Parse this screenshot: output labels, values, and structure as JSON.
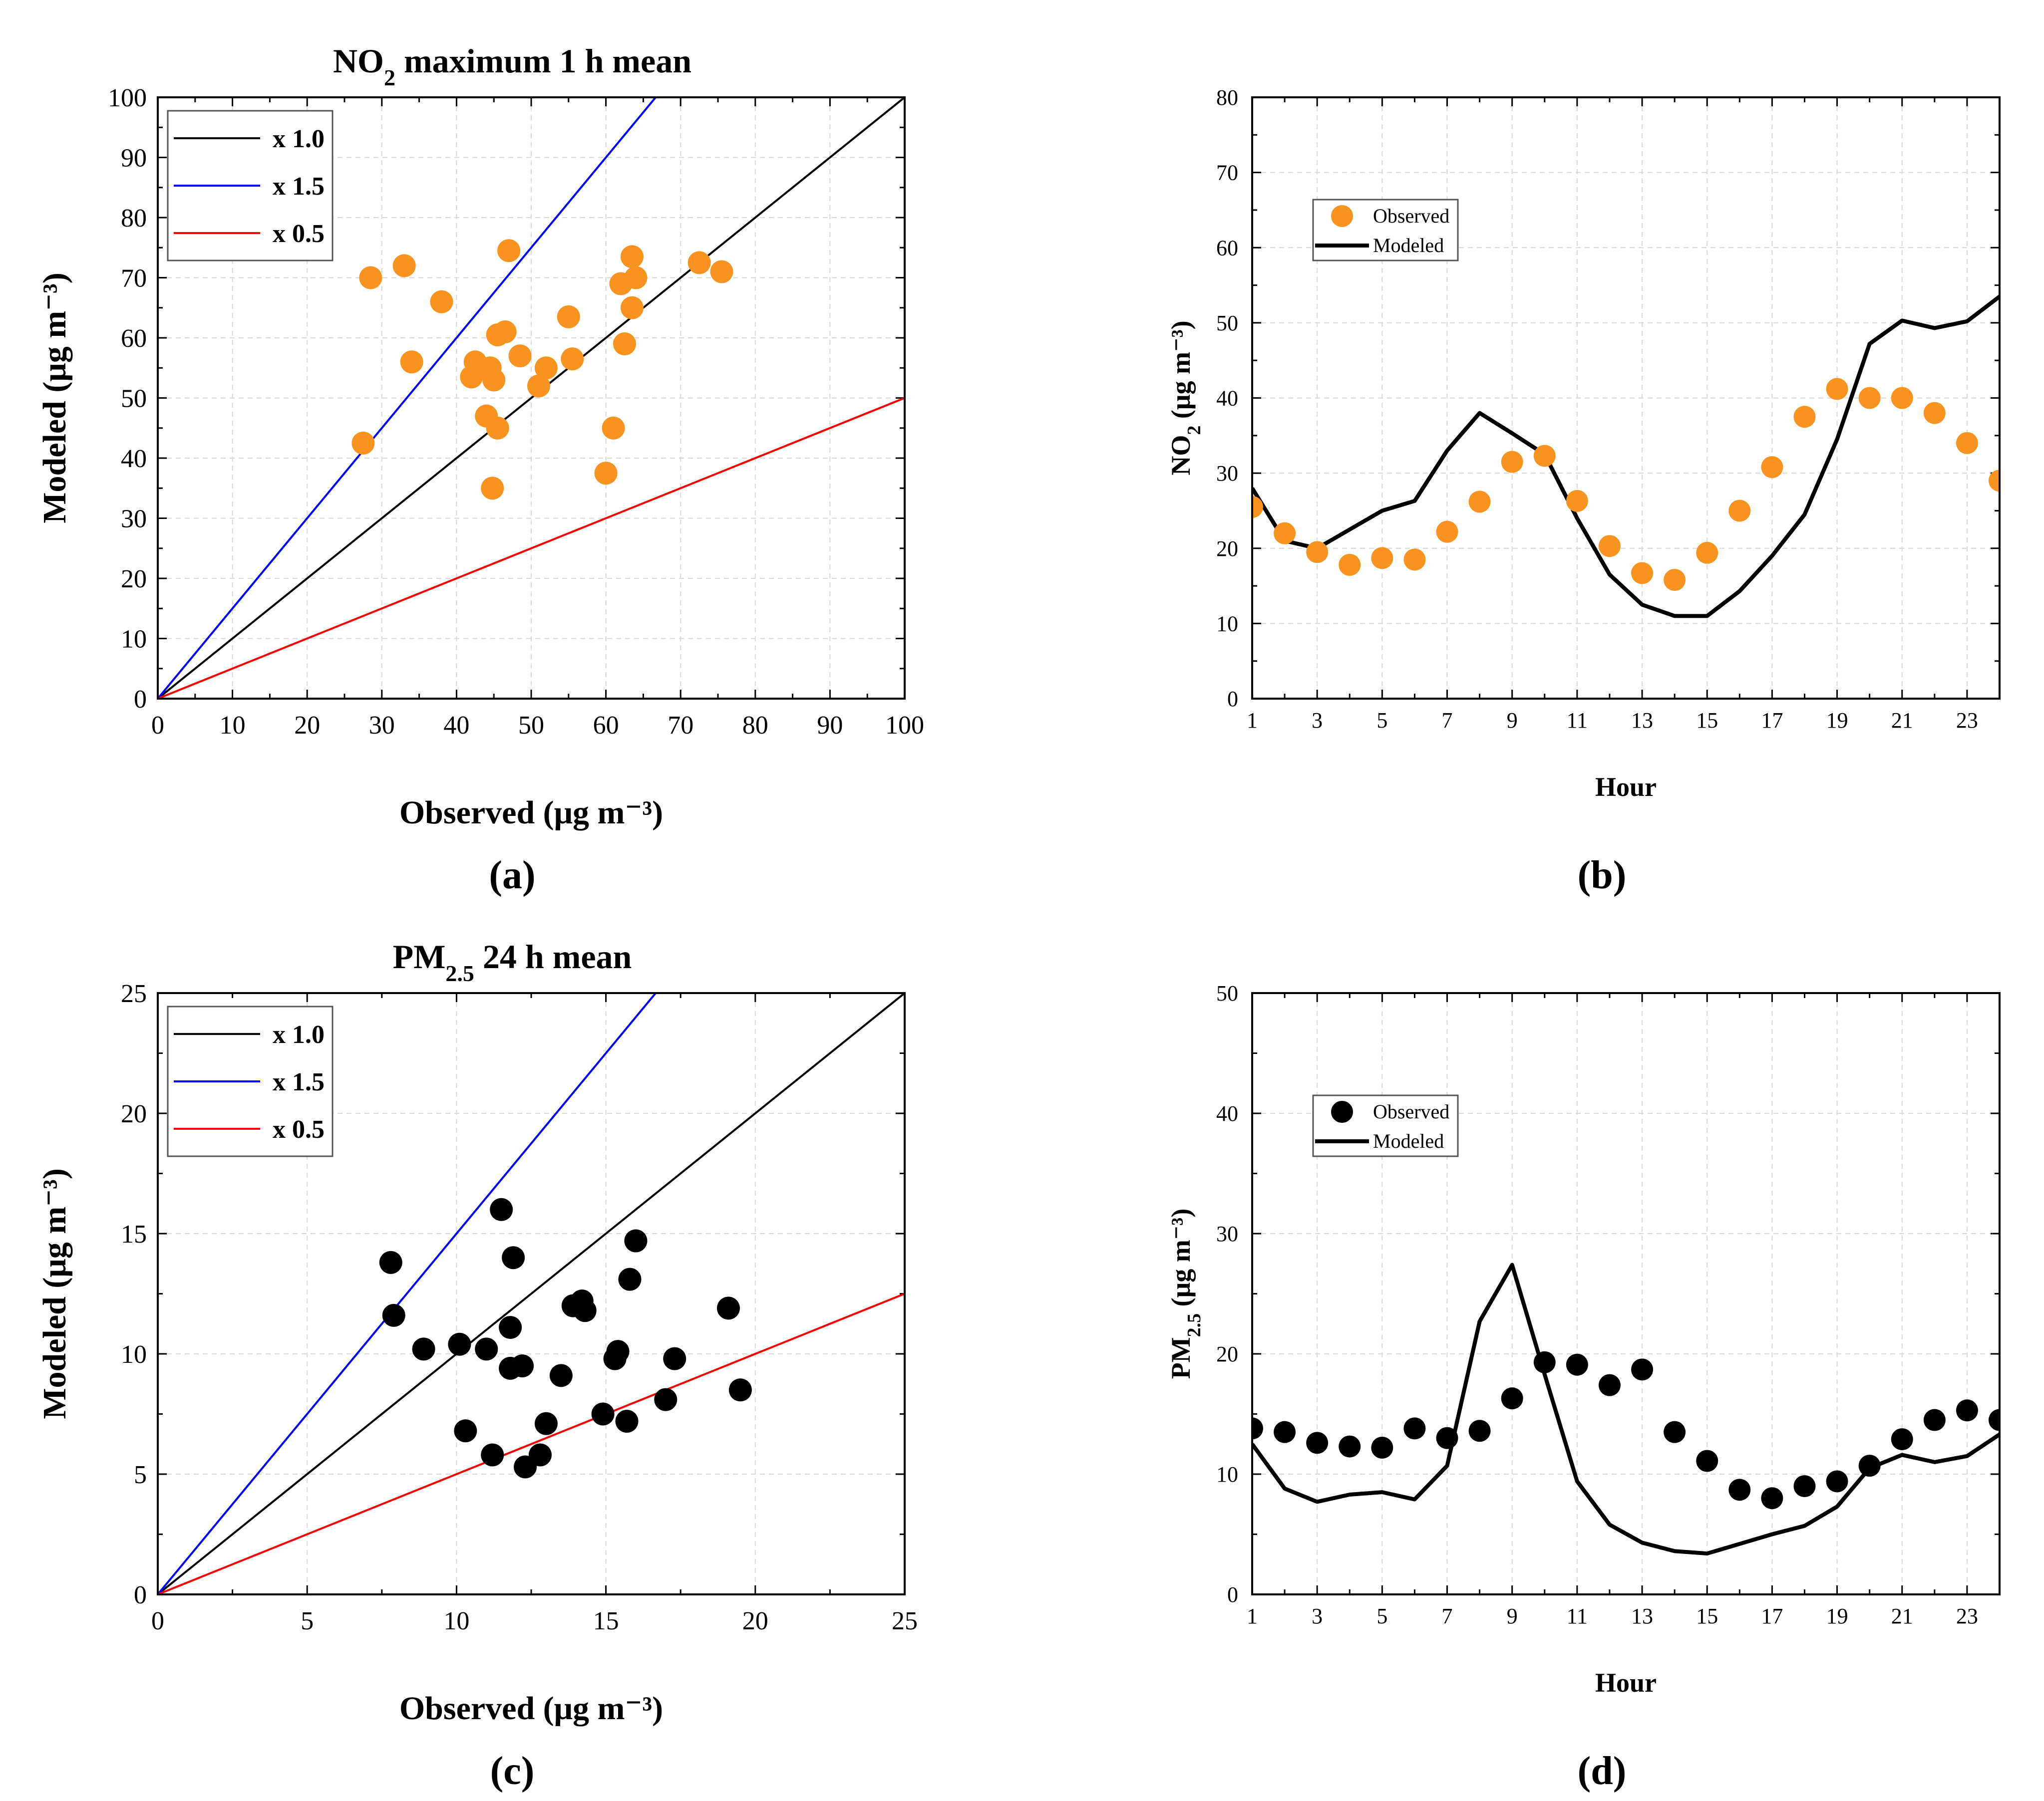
{
  "chart_data": [
    {
      "id": "a",
      "type": "scatter",
      "title": "NO2 maximum 1 h mean",
      "title_main": "NO",
      "title_sub": "2",
      "title_rest": " maximum 1 h mean",
      "panel_label": "(a)",
      "xlabel": "Observed (μg m⁻³)",
      "ylabel": "Modeled (μg m⁻³)",
      "xlim": [
        0,
        100
      ],
      "ylim": [
        0,
        100
      ],
      "xticks": [
        0,
        10,
        20,
        30,
        40,
        50,
        60,
        70,
        80,
        90,
        100
      ],
      "yticks": [
        0,
        10,
        20,
        30,
        40,
        50,
        60,
        70,
        80,
        90,
        100
      ],
      "marker_color": "#f7931e",
      "points": [
        [
          27.5,
          42.5
        ],
        [
          28.5,
          70
        ],
        [
          33,
          72
        ],
        [
          34,
          56
        ],
        [
          38,
          66
        ],
        [
          42,
          53.5
        ],
        [
          42.5,
          56
        ],
        [
          44,
          47
        ],
        [
          44.5,
          55
        ],
        [
          44.8,
          35
        ],
        [
          45,
          53
        ],
        [
          45.5,
          60.5
        ],
        [
          45.5,
          45
        ],
        [
          46.5,
          61
        ],
        [
          47,
          74.5
        ],
        [
          48.5,
          57
        ],
        [
          51,
          52
        ],
        [
          52,
          55
        ],
        [
          55,
          63.5
        ],
        [
          55.5,
          56.5
        ],
        [
          60,
          37.5
        ],
        [
          61,
          45
        ],
        [
          62,
          69
        ],
        [
          62.5,
          59
        ],
        [
          63.5,
          65
        ],
        [
          63.5,
          73.5
        ],
        [
          64,
          70
        ],
        [
          72.5,
          72.5
        ],
        [
          75.5,
          71
        ]
      ],
      "ref_lines": [
        {
          "name": "x 1.0",
          "slope": 1.0,
          "color": "#000000"
        },
        {
          "name": "x 1.5",
          "slope": 1.5,
          "color": "#0000ff"
        },
        {
          "name": "x 0.5",
          "slope": 0.5,
          "color": "#ff0000"
        }
      ],
      "legend": [
        "x 1.0",
        "x 1.5",
        "x 0.5"
      ],
      "legend_position": "top-left"
    },
    {
      "id": "b",
      "type": "line",
      "panel_label": "(b)",
      "xlabel": "Hour",
      "ylabel": "NO2 (μg m⁻³)",
      "ylabel_main": "NO",
      "ylabel_sub": "2",
      "ylabel_rest": " (μg m⁻³)",
      "xlim": [
        1,
        24
      ],
      "ylim": [
        0,
        80
      ],
      "xticks": [
        1,
        3,
        5,
        7,
        9,
        11,
        13,
        15,
        17,
        19,
        21,
        23
      ],
      "yticks": [
        0,
        10,
        20,
        30,
        40,
        50,
        60,
        70,
        80
      ],
      "x": [
        1,
        2,
        3,
        4,
        5,
        6,
        7,
        8,
        9,
        10,
        11,
        12,
        13,
        14,
        15,
        16,
        17,
        18,
        19,
        20,
        21,
        22,
        23,
        24
      ],
      "series": [
        {
          "name": "Observed",
          "style": "markers",
          "color": "#f7931e",
          "values": [
            25.5,
            22,
            19.5,
            17.8,
            18.7,
            18.5,
            22.2,
            26.2,
            31.5,
            32.3,
            26.3,
            20.3,
            16.7,
            15.8,
            19.4,
            25,
            30.8,
            37.5,
            41.2,
            40,
            40,
            38,
            34,
            29
          ]
        },
        {
          "name": "Modeled",
          "style": "line",
          "color": "#000000",
          "values": [
            28,
            21,
            20,
            22.5,
            25,
            26.3,
            33,
            38,
            35.3,
            32.5,
            24,
            16.5,
            12.5,
            11,
            11,
            14.3,
            19,
            24.5,
            34.5,
            47.2,
            50.3,
            49.3,
            50.2,
            53.5
          ]
        }
      ],
      "legend": [
        "Observed",
        "Modeled"
      ],
      "legend_position": "upper-left"
    },
    {
      "id": "c",
      "type": "scatter",
      "title": "PM2.5 24 h mean",
      "title_main": "PM",
      "title_sub": "2.5",
      "title_rest": " 24 h mean",
      "panel_label": "(c)",
      "xlabel": "Observed (μg m⁻³)",
      "ylabel": "Modeled (μg m⁻³)",
      "xlim": [
        0,
        25
      ],
      "ylim": [
        0,
        25
      ],
      "xticks": [
        0,
        5,
        10,
        15,
        20,
        25
      ],
      "yticks": [
        0,
        5,
        10,
        15,
        20,
        25
      ],
      "marker_color": "#000000",
      "points": [
        [
          7.8,
          13.8
        ],
        [
          7.9,
          11.6
        ],
        [
          8.9,
          10.2
        ],
        [
          10.1,
          10.4
        ],
        [
          10.3,
          6.8
        ],
        [
          11,
          10.2
        ],
        [
          11.2,
          5.8
        ],
        [
          11.5,
          16
        ],
        [
          11.8,
          11.1
        ],
        [
          11.9,
          14
        ],
        [
          11.8,
          9.4
        ],
        [
          12.2,
          9.5
        ],
        [
          12.3,
          5.3
        ],
        [
          12.8,
          5.8
        ],
        [
          13,
          7.1
        ],
        [
          13.5,
          9.1
        ],
        [
          13.9,
          12
        ],
        [
          14.2,
          12.2
        ],
        [
          14.3,
          11.8
        ],
        [
          14.9,
          7.5
        ],
        [
          15.3,
          9.8
        ],
        [
          15.4,
          10.1
        ],
        [
          15.7,
          7.2
        ],
        [
          15.8,
          13.1
        ],
        [
          16,
          14.7
        ],
        [
          17,
          8.1
        ],
        [
          17.3,
          9.8
        ],
        [
          19.1,
          11.9
        ],
        [
          19.5,
          8.5
        ]
      ],
      "ref_lines": [
        {
          "name": "x 1.0",
          "slope": 1.0,
          "color": "#000000"
        },
        {
          "name": "x 1.5",
          "slope": 1.5,
          "color": "#0000ff"
        },
        {
          "name": "x 0.5",
          "slope": 0.5,
          "color": "#ff0000"
        }
      ],
      "legend": [
        "x 1.0",
        "x 1.5",
        "x 0.5"
      ],
      "legend_position": "top-left"
    },
    {
      "id": "d",
      "type": "line",
      "panel_label": "(d)",
      "xlabel": "Hour",
      "ylabel": "PM2.5 (μg m⁻³)",
      "ylabel_main": "PM",
      "ylabel_sub": "2.5",
      "ylabel_rest": " (μg m⁻³)",
      "xlim": [
        1,
        24
      ],
      "ylim": [
        0,
        50
      ],
      "xticks": [
        1,
        3,
        5,
        7,
        9,
        11,
        13,
        15,
        17,
        19,
        21,
        23
      ],
      "yticks": [
        0,
        10,
        20,
        30,
        40,
        50
      ],
      "x": [
        1,
        2,
        3,
        4,
        5,
        6,
        7,
        8,
        9,
        10,
        11,
        12,
        13,
        14,
        15,
        16,
        17,
        18,
        19,
        20,
        21,
        22,
        23,
        24
      ],
      "series": [
        {
          "name": "Observed",
          "style": "markers",
          "color": "#000000",
          "values": [
            13.8,
            13.5,
            12.6,
            12.3,
            12.2,
            13.8,
            13,
            13.6,
            16.3,
            19.3,
            19.1,
            17.4,
            18.7,
            13.5,
            11.1,
            8.7,
            8,
            9,
            9.4,
            10.7,
            12.9,
            14.5,
            15.3,
            14.5
          ]
        },
        {
          "name": "Modeled",
          "style": "line",
          "color": "#000000",
          "values": [
            12.5,
            8.8,
            7.7,
            8.3,
            8.5,
            7.9,
            10.7,
            22.7,
            27.4,
            18.3,
            9.4,
            5.8,
            4.3,
            3.6,
            3.4,
            4.2,
            5,
            5.7,
            7.3,
            10.5,
            11.6,
            11,
            11.5,
            13.3
          ]
        }
      ],
      "legend": [
        "Observed",
        "Modeled"
      ],
      "legend_position": "upper-left"
    }
  ]
}
